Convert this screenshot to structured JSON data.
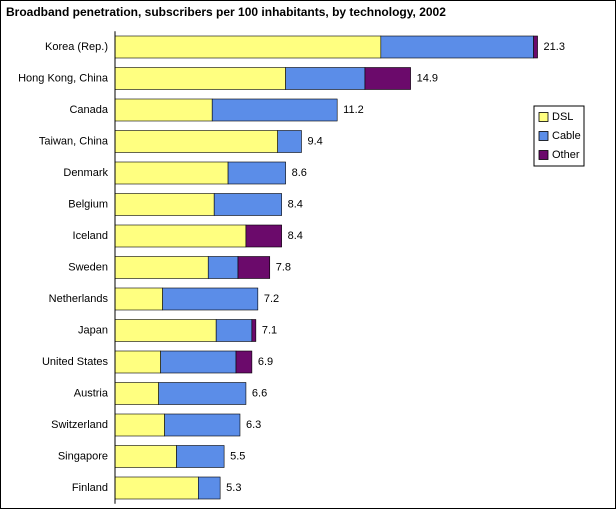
{
  "chart_data": {
    "type": "stacked-bar-horizontal",
    "title": "Broadband penetration, subscribers per 100 inhabitants, by technology, 2002",
    "categories": [
      "Korea (Rep.)",
      "Hong Kong, China",
      "Canada",
      "Taiwan, China",
      "Denmark",
      "Belgium",
      "Iceland",
      "Sweden",
      "Netherlands",
      "Japan",
      "United States",
      "Austria",
      "Switzerland",
      "Singapore",
      "Finland"
    ],
    "series": [
      {
        "name": "DSL",
        "color": "#ffff80",
        "values": [
          13.4,
          8.6,
          4.9,
          8.2,
          5.7,
          5.0,
          6.6,
          4.7,
          2.4,
          5.1,
          2.3,
          2.2,
          2.5,
          3.1,
          4.2
        ]
      },
      {
        "name": "Cable",
        "color": "#5b8de8",
        "values": [
          7.7,
          4.0,
          6.3,
          1.2,
          2.9,
          3.4,
          0,
          1.5,
          4.8,
          1.8,
          3.8,
          4.4,
          3.8,
          2.4,
          1.1
        ]
      },
      {
        "name": "Other",
        "color": "#6b0a6b",
        "values": [
          0.2,
          2.3,
          0,
          0,
          0,
          0,
          1.8,
          1.6,
          0,
          0.2,
          0.8,
          0,
          0,
          0,
          0
        ]
      }
    ],
    "totals": [
      21.3,
      14.9,
      11.2,
      9.4,
      8.6,
      8.4,
      8.4,
      7.8,
      7.2,
      7.1,
      6.9,
      6.6,
      6.3,
      5.5,
      5.3
    ],
    "xlim": [
      0,
      24.7
    ],
    "legend": "right"
  }
}
